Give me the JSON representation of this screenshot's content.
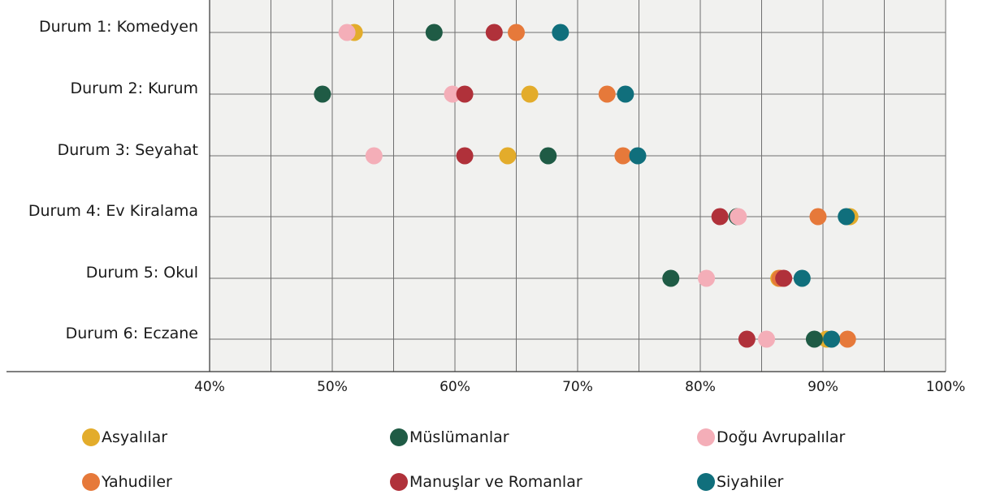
{
  "chart_data": {
    "type": "scatter",
    "categories": [
      "Durum 1: Komedyen",
      "Durum 2: Kurum",
      "Durum 3: Seyahat",
      "Durum 4: Ev Kiralama",
      "Durum 5: Okul",
      "Durum 6: Eczane"
    ],
    "xlim": [
      40,
      100
    ],
    "x_ticks": [
      "40%",
      "50%",
      "60%",
      "70%",
      "80%",
      "90%",
      "100%"
    ],
    "grid": true,
    "legend_position": "bottom",
    "series": [
      {
        "name": "Asyalılar",
        "color": "#E3AC2B",
        "values": [
          51.8,
          66.1,
          64.3,
          92.2,
          86.4,
          90.3
        ]
      },
      {
        "name": "Müslümanlar",
        "color": "#1F5B45",
        "values": [
          58.3,
          49.2,
          67.6,
          83.0,
          77.6,
          89.3
        ]
      },
      {
        "name": "Doğu Avrupalılar",
        "color": "#F4AEB8",
        "values": [
          51.2,
          59.8,
          53.4,
          83.1,
          80.5,
          85.4
        ]
      },
      {
        "name": "Yahudiler",
        "color": "#E6793A",
        "values": [
          65.0,
          72.4,
          73.7,
          89.6,
          86.5,
          92.0
        ]
      },
      {
        "name": "Manuşlar ve Romanlar",
        "color": "#B0313A",
        "values": [
          63.2,
          60.8,
          60.8,
          81.6,
          86.8,
          83.8
        ]
      },
      {
        "name": "Siyahiler",
        "color": "#106F7C",
        "values": [
          68.6,
          73.9,
          74.9,
          91.9,
          88.3,
          90.7
        ]
      }
    ]
  }
}
